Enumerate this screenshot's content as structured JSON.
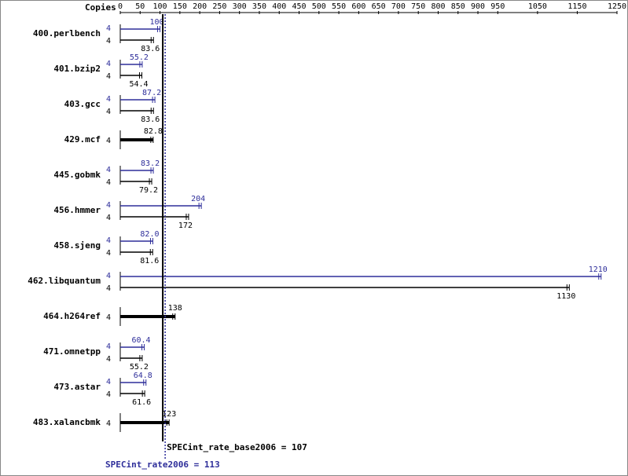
{
  "chart_data": {
    "type": "spec-rate",
    "axis_label": "Copies",
    "categories": [
      "400.perlbench",
      "401.bzip2",
      "403.gcc",
      "429.mcf",
      "445.gobmk",
      "456.hmmer",
      "458.sjeng",
      "462.libquantum",
      "464.h264ref",
      "471.omnetpp",
      "473.astar",
      "483.xalancbmk"
    ],
    "xlim": [
      0,
      1250
    ],
    "xticks": [
      0,
      50,
      100,
      150,
      200,
      250,
      300,
      350,
      400,
      450,
      500,
      550,
      600,
      650,
      700,
      750,
      800,
      850,
      900,
      950,
      1050,
      1150,
      1250
    ],
    "series": [
      {
        "name": "SPECint_rate_base2006",
        "color": "#000000",
        "mean": 107,
        "mean_label": "SPECint_rate_base2006 = 107",
        "copies": [
          4,
          4,
          4,
          4,
          4,
          4,
          4,
          4,
          4,
          4,
          4,
          4
        ],
        "values": [
          83.6,
          54.4,
          83.6,
          82.8,
          79.2,
          172,
          81.6,
          1130,
          138,
          55.2,
          61.6,
          123
        ]
      },
      {
        "name": "SPECint_rate2006",
        "color": "#2e2e9a",
        "mean": 113,
        "mean_label": "SPECint_rate2006 = 113",
        "copies": [
          4,
          4,
          4,
          null,
          4,
          4,
          4,
          4,
          null,
          4,
          4,
          null
        ],
        "values": [
          100,
          55.2,
          87.2,
          null,
          83.2,
          204,
          82.0,
          1210,
          null,
          60.4,
          64.8,
          null
        ],
        "value_labels": [
          "100",
          "55.2",
          "87.2",
          null,
          "83.2",
          "204",
          "82.0",
          "1210",
          null,
          "60.4",
          "64.8",
          null
        ]
      }
    ]
  }
}
